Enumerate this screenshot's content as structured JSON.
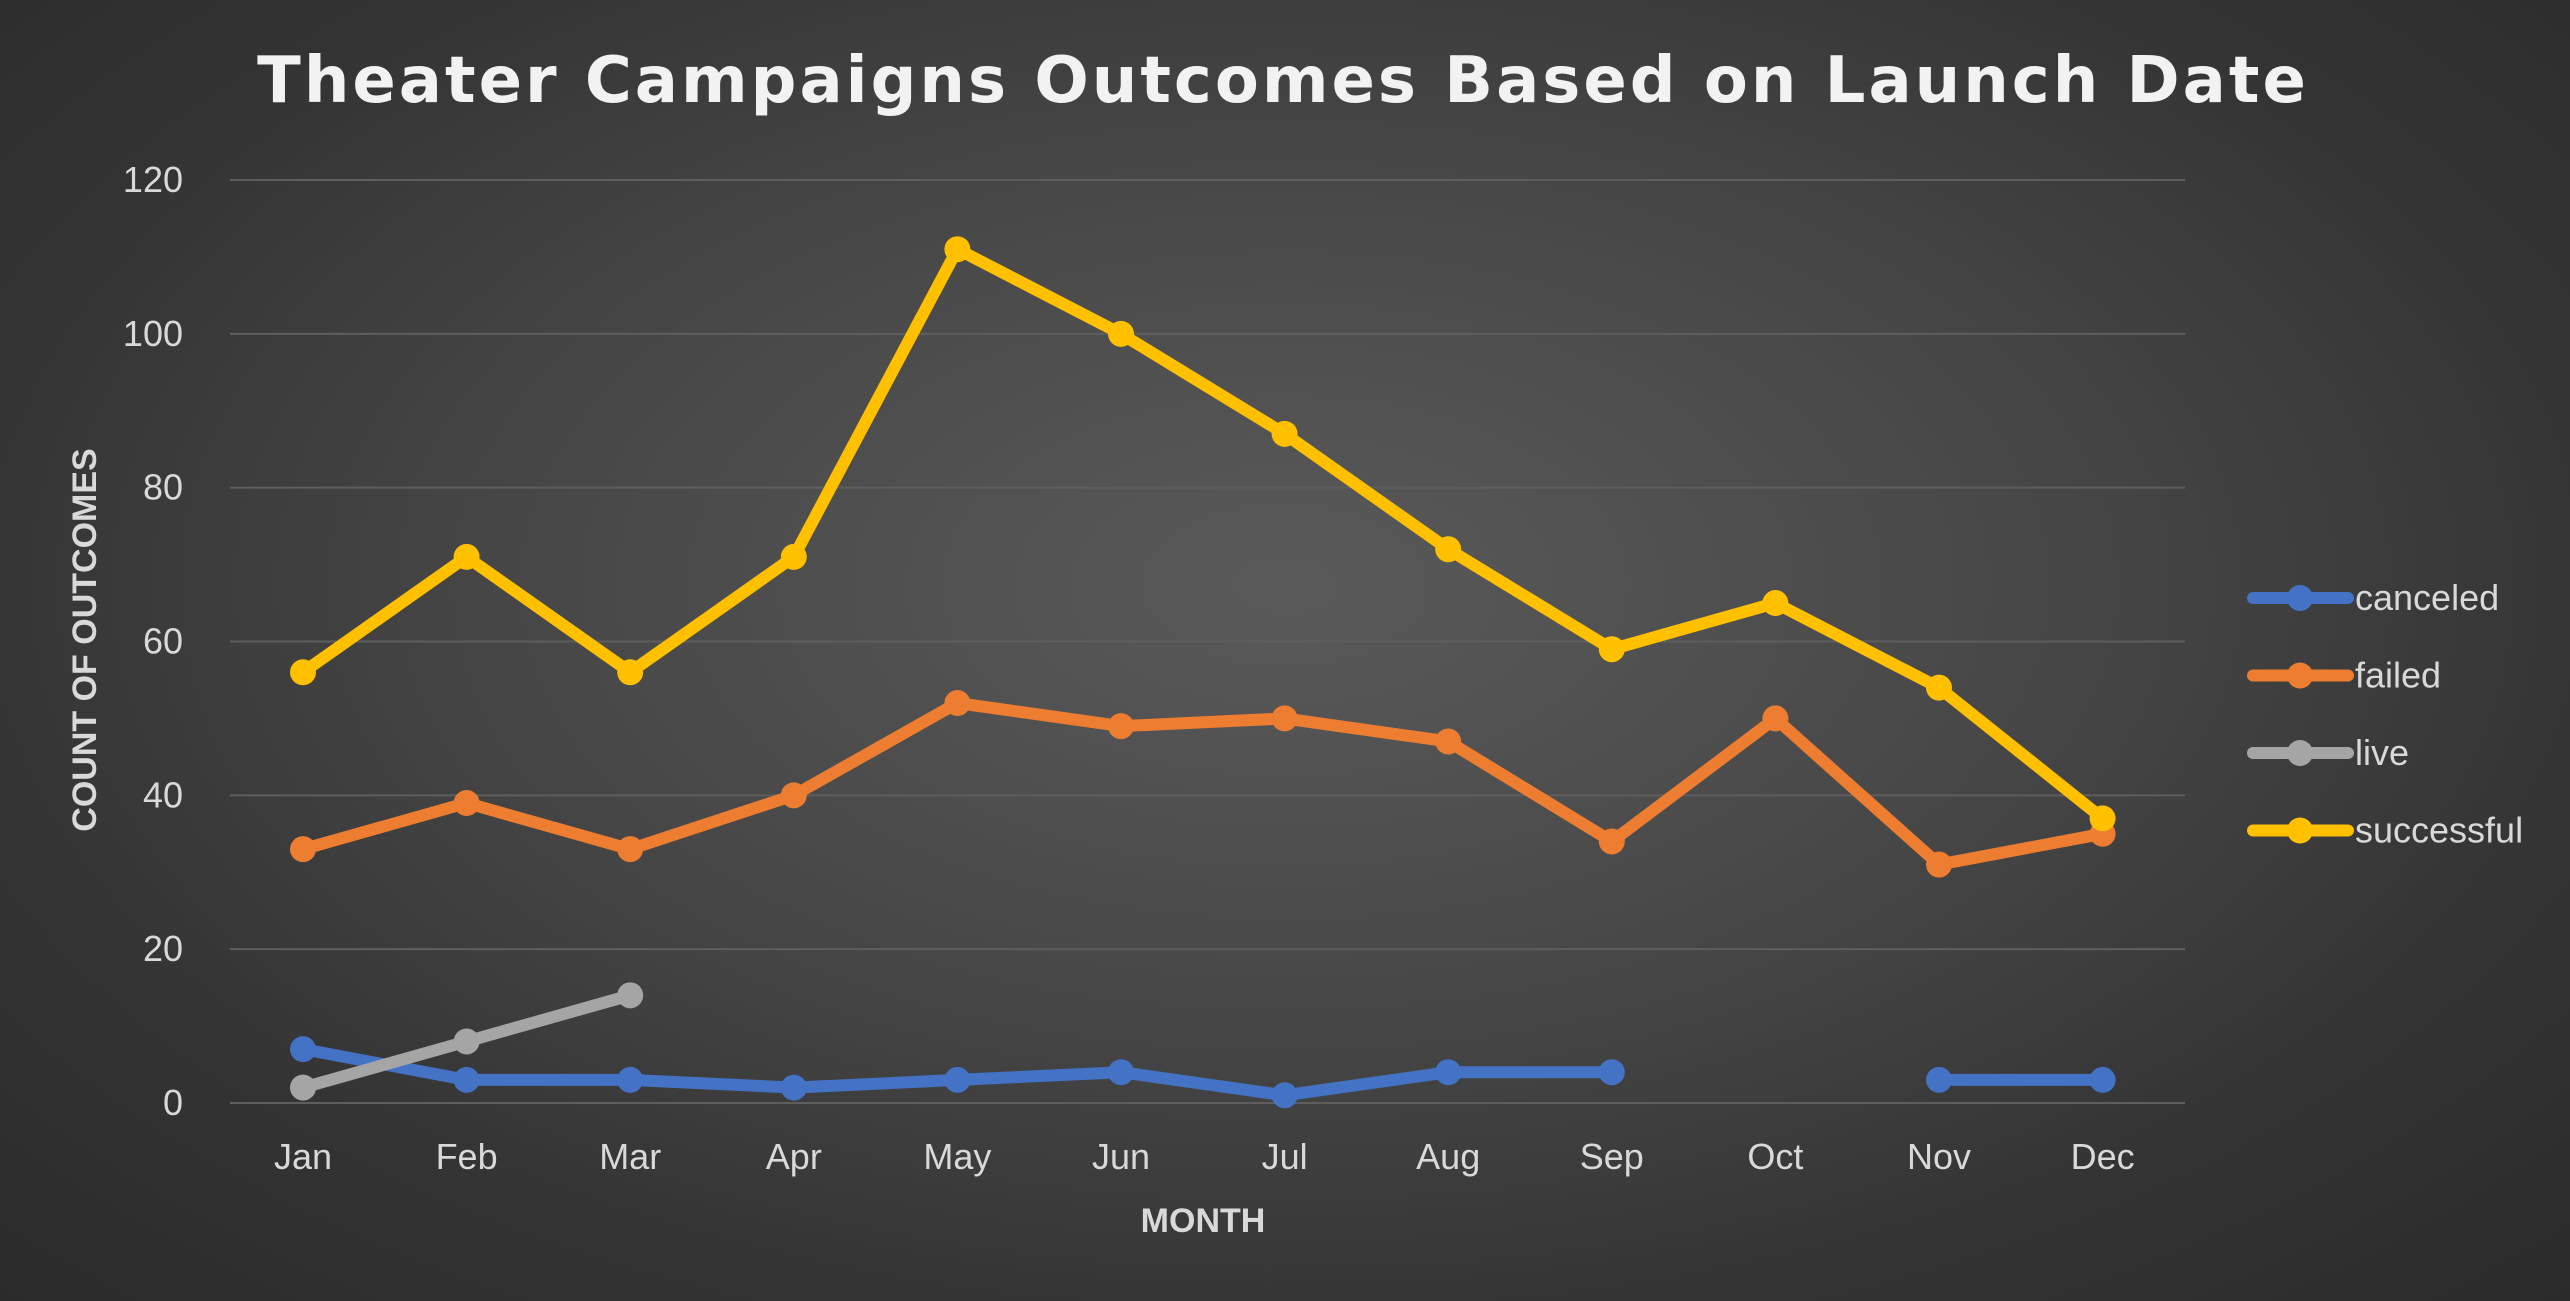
{
  "chart_data": {
    "type": "line",
    "title": "Theater Campaigns Outcomes Based on Launch Date",
    "xlabel": "MONTH",
    "ylabel": "COUNT OF OUTCOMES",
    "categories": [
      "Jan",
      "Feb",
      "Mar",
      "Apr",
      "May",
      "Jun",
      "Jul",
      "Aug",
      "Sep",
      "Oct",
      "Nov",
      "Dec"
    ],
    "ylim": [
      0,
      120
    ],
    "yticks": [
      "0",
      "20",
      "40",
      "60",
      "80",
      "100",
      "120"
    ],
    "grid": true,
    "legend_position": "right",
    "series": [
      {
        "name": "canceled",
        "color": "#4472c4",
        "values": [
          7,
          3,
          3,
          2,
          3,
          4,
          1,
          4,
          4,
          null,
          3,
          3
        ]
      },
      {
        "name": "failed",
        "color": "#ed7d31",
        "values": [
          33,
          39,
          33,
          40,
          52,
          49,
          50,
          47,
          34,
          50,
          31,
          35
        ]
      },
      {
        "name": "live",
        "color": "#a5a5a5",
        "values": [
          2,
          8,
          14,
          null,
          null,
          null,
          null,
          null,
          null,
          null,
          null,
          null
        ]
      },
      {
        "name": "successful",
        "color": "#ffc000",
        "values": [
          56,
          71,
          56,
          71,
          111,
          100,
          87,
          72,
          59,
          65,
          54,
          37
        ]
      }
    ]
  }
}
